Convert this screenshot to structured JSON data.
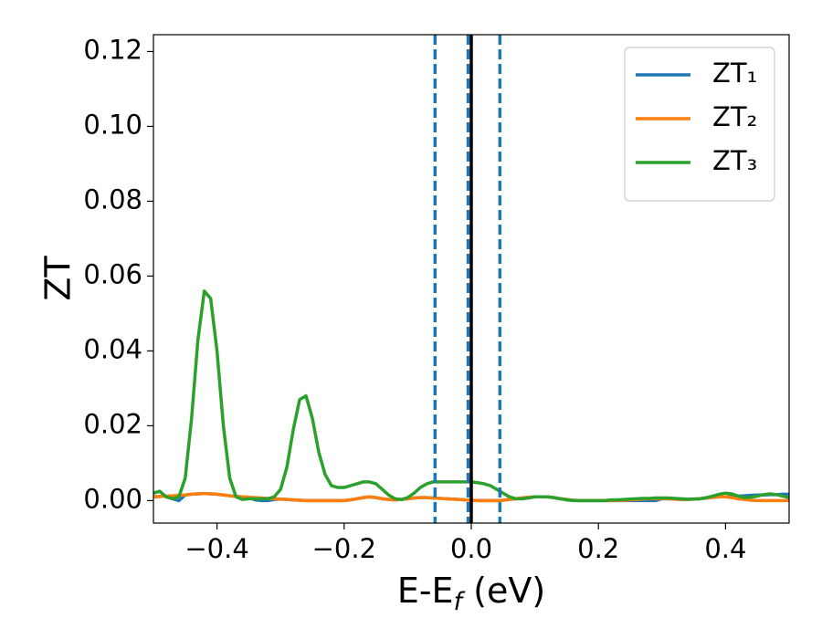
{
  "chart_data": {
    "type": "line",
    "ylabel": "ZT",
    "xlabel_parts": [
      "E-E",
      "f",
      " (eV)"
    ],
    "xlim": [
      -0.5,
      0.5
    ],
    "ylim": [
      -0.006,
      0.1245
    ],
    "xticks": [
      {
        "value": -0.4,
        "label": "−0.4"
      },
      {
        "value": -0.2,
        "label": "−0.2"
      },
      {
        "value": 0,
        "label": "0.0"
      },
      0.2,
      0.4
    ],
    "yticks": [
      {
        "value": 0,
        "label": "0.00"
      },
      {
        "value": 0.02,
        "label": "0.02"
      },
      {
        "value": 0.04,
        "label": "0.04"
      },
      {
        "value": 0.06,
        "label": "0.06"
      },
      {
        "value": 0.08,
        "label": "0.08"
      },
      {
        "value": 0.1,
        "label": "0.10"
      },
      {
        "value": 0.12,
        "label": "0.12"
      }
    ],
    "legend": "upper right",
    "vlines": [
      {
        "x": -0.057,
        "color": "#1f77b4",
        "dashed": true
      },
      {
        "x": -0.005,
        "color": "#1f77b4",
        "dashed": true
      },
      {
        "x": 0.045,
        "color": "#1f77b4",
        "dashed": true
      },
      {
        "x": 0,
        "color": "#000000",
        "dashed": false
      }
    ],
    "x": [
      -0.5,
      -0.49,
      -0.48,
      -0.47,
      -0.46,
      -0.45,
      -0.44,
      -0.43,
      -0.42,
      -0.41,
      -0.4,
      -0.39,
      -0.38,
      -0.37,
      -0.36,
      -0.35,
      -0.34,
      -0.33,
      -0.32,
      -0.31,
      -0.3,
      -0.29,
      -0.28,
      -0.27,
      -0.26,
      -0.25,
      -0.24,
      -0.23,
      -0.22,
      -0.21,
      -0.2,
      -0.19,
      -0.18,
      -0.17,
      -0.16,
      -0.15,
      -0.14,
      -0.13,
      -0.12,
      -0.11,
      -0.1,
      -0.09,
      -0.08,
      -0.07,
      -0.06,
      -0.05,
      -0.04,
      -0.03,
      -0.02,
      -0.01,
      0,
      0.01,
      0.02,
      0.03,
      0.04,
      0.05,
      0.06,
      0.07,
      0.08,
      0.09,
      0.1,
      0.11,
      0.12,
      0.13,
      0.14,
      0.15,
      0.16,
      0.17,
      0.18,
      0.19,
      0.2,
      0.21,
      0.22,
      0.23,
      0.24,
      0.25,
      0.26,
      0.27,
      0.28,
      0.29,
      0.3,
      0.31,
      0.32,
      0.33,
      0.34,
      0.35,
      0.36,
      0.37,
      0.38,
      0.39,
      0.4,
      0.41,
      0.42,
      0.43,
      0.44,
      0.45,
      0.46,
      0.47,
      0.48,
      0.49,
      0.5
    ],
    "series": [
      {
        "name": "ZT₁",
        "color": "#1f77b4",
        "values": [
          0.001,
          0.0011,
          0.0012,
          0.0005,
          0,
          0.0015,
          0.0017,
          0.0018,
          0.0019,
          0.0018,
          0.0017,
          0.0015,
          0.0013,
          0.0011,
          0.001,
          0.0009,
          0.0002,
          0,
          0,
          0.0003,
          0.0004,
          0.0003,
          0.0002,
          0.0001,
          0,
          0,
          0,
          0,
          0,
          0,
          0,
          0.0002,
          0.0005,
          0.0008,
          0.001,
          0.0008,
          0.0005,
          0.0003,
          0.0002,
          0.0003,
          0.0005,
          0.0007,
          0.0008,
          0.0008,
          0.0007,
          0.0006,
          0.0005,
          0.0004,
          0.0003,
          0.0002,
          0.0001,
          0,
          0,
          0,
          0,
          0.0001,
          0.0003,
          0.0005,
          0.0007,
          0.0009,
          0.001,
          0.001,
          0.001,
          0.0008,
          0.0005,
          0.0003,
          0.0001,
          0,
          0,
          0,
          0,
          0,
          0,
          0,
          0,
          0,
          0,
          0,
          0,
          0,
          0.0005,
          0.0005,
          0.0004,
          0.0003,
          0.0003,
          0.0004,
          0.0005,
          0.0007,
          0.0009,
          0.001,
          0.001,
          0.0011,
          0.0012,
          0.0013,
          0.0014,
          0.0015,
          0.0015,
          0.0016,
          0.0016,
          0.0017,
          0.0017
        ]
      },
      {
        "name": "ZT₂",
        "color": "#ff7f0e",
        "values": [
          0.001,
          0.0011,
          0.0012,
          0.0013,
          0.0014,
          0.0015,
          0.0017,
          0.0018,
          0.0019,
          0.0018,
          0.0017,
          0.0015,
          0.0013,
          0.0011,
          0.001,
          0.0009,
          0.0008,
          0.0007,
          0.0006,
          0.0005,
          0.0004,
          0.0003,
          0.0002,
          0.0001,
          0,
          0,
          0,
          0,
          0,
          0,
          0,
          0.0002,
          0.0005,
          0.0008,
          0.001,
          0.0008,
          0.0005,
          0.0003,
          0.0002,
          0.0003,
          0.0005,
          0.0007,
          0.0008,
          0.0008,
          0.0007,
          0.0006,
          0.0005,
          0.0004,
          0.0003,
          0.0002,
          0.0001,
          0,
          0,
          0,
          0,
          0.0001,
          0.0003,
          0.0005,
          0.0007,
          0.0009,
          0.001,
          0.001,
          0.001,
          0.0008,
          0.0005,
          0.0003,
          0.0001,
          0,
          0,
          0,
          0,
          0,
          0,
          0,
          0.0001,
          0.0002,
          0.0003,
          0.0004,
          0.0005,
          0.0005,
          0.0005,
          0.0005,
          0.0004,
          0.0003,
          0.0003,
          0.0004,
          0.0005,
          0.0007,
          0.0009,
          0.001,
          0.001,
          0.0008,
          0.0005,
          0.0003,
          0.0001,
          0,
          0,
          0,
          0,
          0,
          0
        ]
      },
      {
        "name": "ZT₃",
        "color": "#2ca02c",
        "values": [
          0.002,
          0.0025,
          0.001,
          0.0005,
          0.001,
          0.006,
          0.022,
          0.043,
          0.056,
          0.054,
          0.04,
          0.02,
          0.006,
          0.001,
          0.0003,
          0.0005,
          0.0005,
          0.0005,
          0.0005,
          0.001,
          0.003,
          0.009,
          0.019,
          0.027,
          0.028,
          0.022,
          0.013,
          0.007,
          0.004,
          0.0035,
          0.0035,
          0.004,
          0.0045,
          0.005,
          0.005,
          0.0045,
          0.003,
          0.0015,
          0.0005,
          0.0003,
          0.0008,
          0.002,
          0.0035,
          0.0045,
          0.005,
          0.005,
          0.005,
          0.005,
          0.005,
          0.005,
          0.005,
          0.0048,
          0.0045,
          0.004,
          0.003,
          0.002,
          0.001,
          0.0005,
          0.0005,
          0.0007,
          0.001,
          0.001,
          0.001,
          0.0008,
          0.0005,
          0.0002,
          0,
          0,
          0,
          0,
          0,
          0,
          0.0002,
          0.0002,
          0.0003,
          0.0004,
          0.0005,
          0.0006,
          0.0006,
          0.0007,
          0.0007,
          0.0007,
          0.0006,
          0.0005,
          0.0004,
          0.0004,
          0.0005,
          0.0008,
          0.0012,
          0.0017,
          0.002,
          0.0018,
          0.0012,
          0.0008,
          0.0009,
          0.0012,
          0.0016,
          0.0018,
          0.0016,
          0.0012,
          0.0008
        ]
      }
    ]
  }
}
